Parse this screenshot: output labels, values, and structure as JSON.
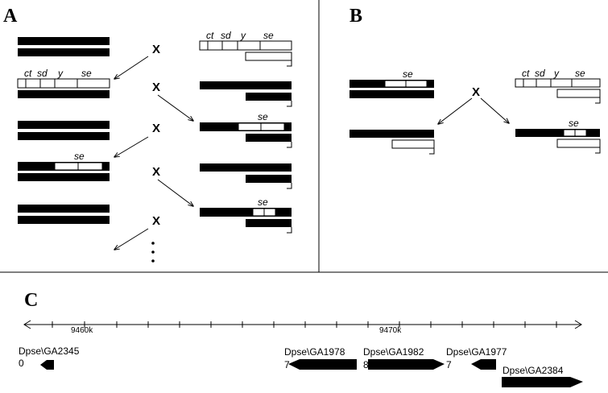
{
  "panels": {
    "a": "A",
    "b": "B",
    "c": "C"
  },
  "markers": {
    "ct": "ct",
    "sd": "sd",
    "y": "y",
    "se": "se"
  },
  "cross_symbol": "X",
  "continuation": "⋮",
  "axis": {
    "tick_1": "9460k",
    "tick_2": "9470k"
  },
  "genes": [
    {
      "id": "Dpse\\GA2345",
      "suffix": "0"
    },
    {
      "id": "Dpse\\GA1978",
      "suffix": "7"
    },
    {
      "id": "Dpse\\GA1982",
      "suffix": "8"
    },
    {
      "id": "Dpse\\GA1977",
      "suffix": "7"
    },
    {
      "id": "Dpse\\GA2384",
      "suffix": ""
    }
  ]
}
